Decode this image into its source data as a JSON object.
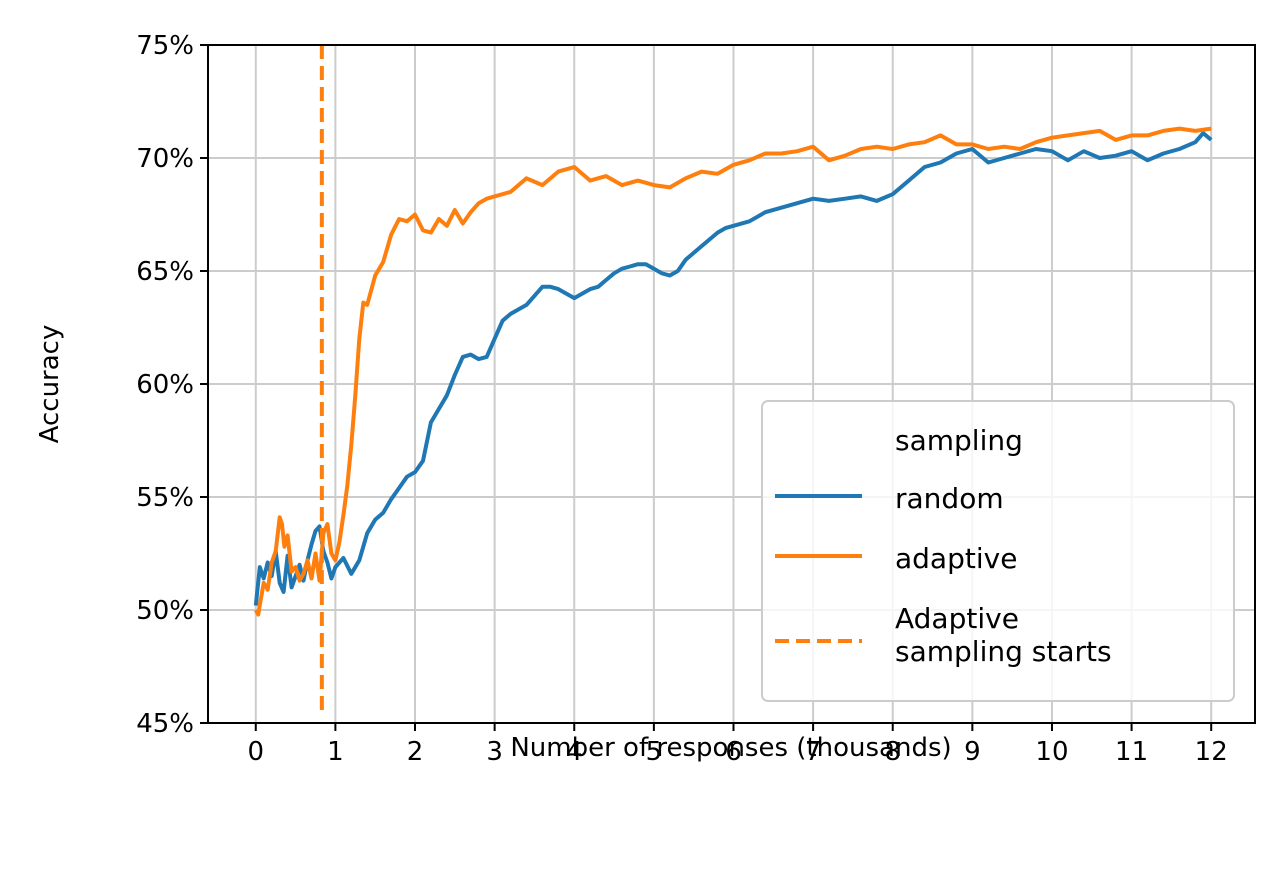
{
  "chart_data": {
    "type": "line",
    "xlabel": "Number of responses (thousands)",
    "ylabel": "Accuracy",
    "xlim": [
      -0.6,
      12.55
    ],
    "ylim": [
      45,
      75
    ],
    "x_ticks": [
      0,
      1,
      2,
      3,
      4,
      5,
      6,
      7,
      8,
      9,
      10,
      11,
      12
    ],
    "y_ticks": [
      45,
      50,
      55,
      60,
      65,
      70,
      75
    ],
    "y_tick_labels": [
      "45%",
      "50%",
      "55%",
      "60%",
      "65%",
      "70%",
      "75%"
    ],
    "grid": true,
    "legend": {
      "title": "sampling",
      "placement": "lower-right",
      "entries": [
        "random",
        "adaptive",
        "Adaptive sampling starts"
      ]
    },
    "colors": {
      "random": "#1f77b4",
      "adaptive": "#ff7f0e",
      "grid": "#cccccc"
    },
    "vline": {
      "x": 0.83,
      "label": "Adaptive sampling starts",
      "style": "dashed"
    },
    "series": [
      {
        "name": "random",
        "x": [
          0,
          0.05,
          0.1,
          0.15,
          0.2,
          0.25,
          0.3,
          0.35,
          0.4,
          0.45,
          0.5,
          0.55,
          0.6,
          0.65,
          0.7,
          0.75,
          0.8,
          0.85,
          0.9,
          0.95,
          1.0,
          1.1,
          1.2,
          1.3,
          1.4,
          1.5,
          1.6,
          1.7,
          1.8,
          1.9,
          2.0,
          2.1,
          2.2,
          2.3,
          2.4,
          2.5,
          2.6,
          2.7,
          2.8,
          2.9,
          3.0,
          3.1,
          3.2,
          3.3,
          3.4,
          3.5,
          3.6,
          3.7,
          3.8,
          3.9,
          4.0,
          4.1,
          4.2,
          4.3,
          4.4,
          4.5,
          4.6,
          4.7,
          4.8,
          4.9,
          5.0,
          5.1,
          5.2,
          5.3,
          5.4,
          5.5,
          5.6,
          5.7,
          5.8,
          5.9,
          6.0,
          6.2,
          6.4,
          6.6,
          6.8,
          7.0,
          7.2,
          7.4,
          7.6,
          7.8,
          8.0,
          8.2,
          8.4,
          8.6,
          8.8,
          9.0,
          9.2,
          9.4,
          9.6,
          9.8,
          10.0,
          10.2,
          10.4,
          10.6,
          10.8,
          11.0,
          11.2,
          11.4,
          11.6,
          11.8,
          11.9,
          12.0
        ],
        "values": [
          50.2,
          51.9,
          51.4,
          52.1,
          51.5,
          52.6,
          51.2,
          50.8,
          52.4,
          51.0,
          51.5,
          52.0,
          51.3,
          52.2,
          52.9,
          53.5,
          53.7,
          52.6,
          52.1,
          51.4,
          51.9,
          52.3,
          51.6,
          52.2,
          53.4,
          54.0,
          54.3,
          54.9,
          55.4,
          55.9,
          56.1,
          56.6,
          58.3,
          58.9,
          59.5,
          60.4,
          61.2,
          61.3,
          61.1,
          61.2,
          62.0,
          62.8,
          63.1,
          63.3,
          63.5,
          63.9,
          64.3,
          64.3,
          64.2,
          64.0,
          63.8,
          64.0,
          64.2,
          64.3,
          64.6,
          64.9,
          65.1,
          65.2,
          65.3,
          65.3,
          65.1,
          64.9,
          64.8,
          65.0,
          65.5,
          65.8,
          66.1,
          66.4,
          66.7,
          66.9,
          67.0,
          67.2,
          67.6,
          67.8,
          68.0,
          68.2,
          68.1,
          68.2,
          68.3,
          68.1,
          68.4,
          69.0,
          69.6,
          69.8,
          70.2,
          70.4,
          69.8,
          70.0,
          70.2,
          70.4,
          70.3,
          69.9,
          70.3,
          70.0,
          70.1,
          70.3,
          69.9,
          70.2,
          70.4,
          70.7,
          71.1,
          70.8
        ]
      },
      {
        "name": "adaptive",
        "x": [
          0,
          0.03,
          0.06,
          0.1,
          0.15,
          0.2,
          0.25,
          0.3,
          0.33,
          0.36,
          0.4,
          0.45,
          0.5,
          0.55,
          0.6,
          0.65,
          0.7,
          0.75,
          0.8,
          0.85,
          0.9,
          0.95,
          1.0,
          1.05,
          1.1,
          1.15,
          1.2,
          1.25,
          1.3,
          1.35,
          1.4,
          1.5,
          1.6,
          1.7,
          1.8,
          1.9,
          2.0,
          2.1,
          2.2,
          2.3,
          2.4,
          2.5,
          2.6,
          2.7,
          2.8,
          2.9,
          3.0,
          3.2,
          3.4,
          3.6,
          3.8,
          4.0,
          4.2,
          4.4,
          4.6,
          4.8,
          5.0,
          5.2,
          5.4,
          5.6,
          5.8,
          6.0,
          6.2,
          6.4,
          6.6,
          6.8,
          7.0,
          7.2,
          7.4,
          7.6,
          7.8,
          8.0,
          8.2,
          8.4,
          8.6,
          8.8,
          9.0,
          9.2,
          9.4,
          9.6,
          9.8,
          10.0,
          10.2,
          10.4,
          10.6,
          10.8,
          11.0,
          11.2,
          11.4,
          11.6,
          11.8,
          12.0
        ],
        "values": [
          50.0,
          49.8,
          50.4,
          51.2,
          50.9,
          52.1,
          52.6,
          54.1,
          53.8,
          52.8,
          53.3,
          51.7,
          51.9,
          51.3,
          51.6,
          52.2,
          51.4,
          52.5,
          51.3,
          53.4,
          53.8,
          52.5,
          52.2,
          53.0,
          54.2,
          55.5,
          57.3,
          59.5,
          62.0,
          63.6,
          63.5,
          64.8,
          65.4,
          66.6,
          67.3,
          67.2,
          67.5,
          66.8,
          66.7,
          67.3,
          67.0,
          67.7,
          67.1,
          67.6,
          68.0,
          68.2,
          68.3,
          68.5,
          69.1,
          68.8,
          69.4,
          69.6,
          69.0,
          69.2,
          68.8,
          69.0,
          68.8,
          68.7,
          69.1,
          69.4,
          69.3,
          69.7,
          69.9,
          70.2,
          70.2,
          70.3,
          70.5,
          69.9,
          70.1,
          70.4,
          70.5,
          70.4,
          70.6,
          70.7,
          71.0,
          70.6,
          70.6,
          70.4,
          70.5,
          70.4,
          70.7,
          70.9,
          71.0,
          71.1,
          71.2,
          70.8,
          71.0,
          71.0,
          71.2,
          71.3,
          71.2,
          71.3
        ]
      }
    ]
  }
}
